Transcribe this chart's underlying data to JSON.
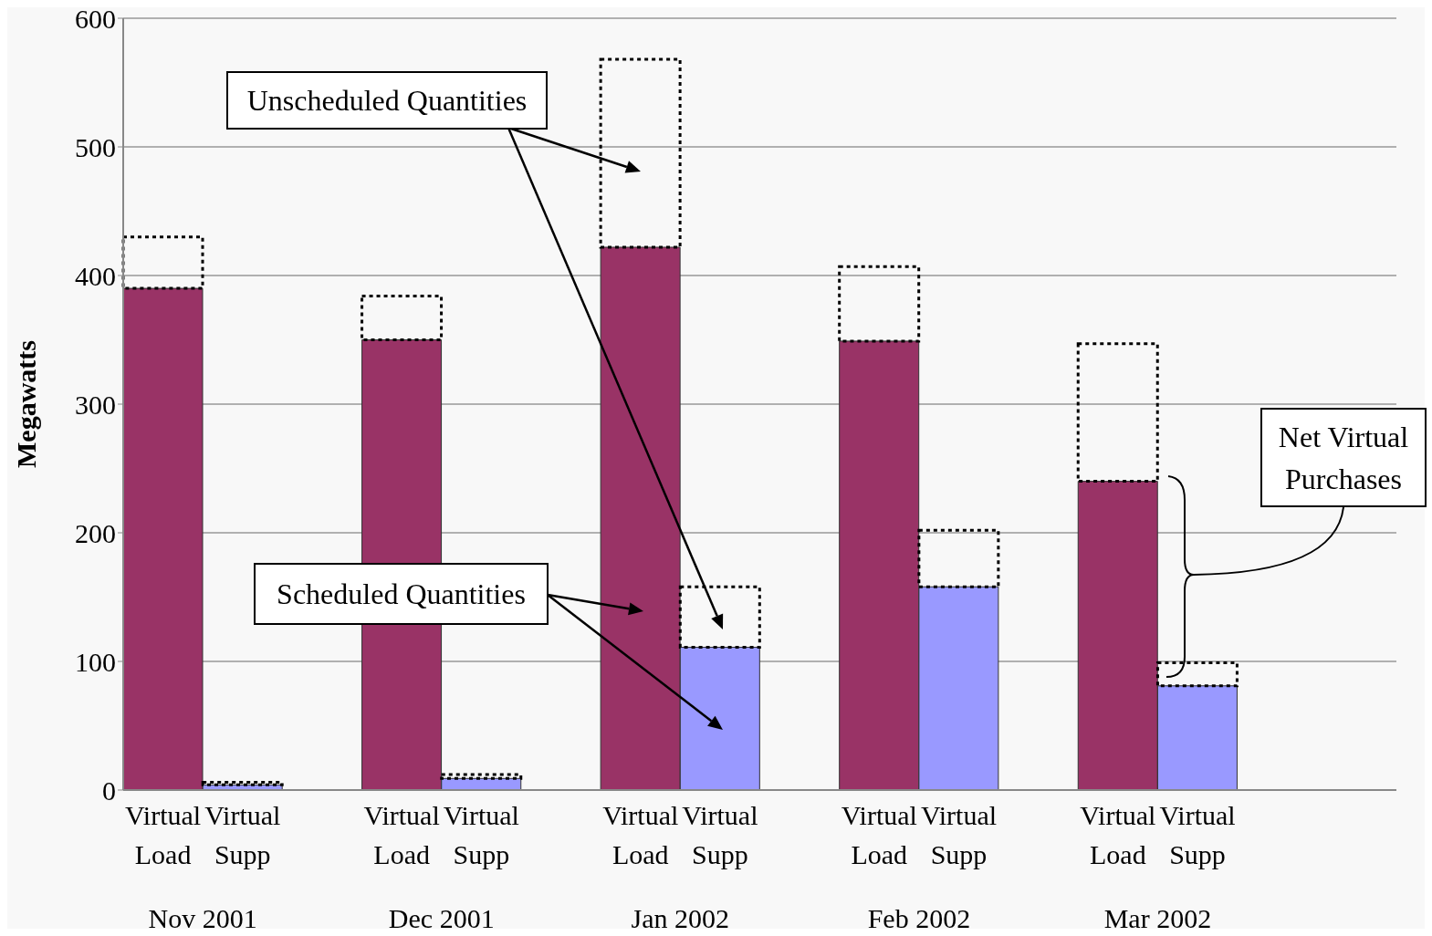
{
  "chart_data": {
    "type": "bar",
    "stacked": true,
    "ylabel": "Megawatts",
    "ylim": [
      0,
      600
    ],
    "yticks": [
      0,
      100,
      200,
      300,
      400,
      500,
      600
    ],
    "grid": "y",
    "categories": [
      "Virtual Load",
      "Virtual Supp",
      null,
      "Virtual Load",
      "Virtual Supp",
      null,
      "Virtual Load",
      "Virtual Supp",
      null,
      "Virtual Load",
      "Virtual Supp",
      null,
      "Virtual Load",
      "Virtual Supp",
      null,
      null
    ],
    "series": [
      {
        "color": "#993366",
        "colors": [
          "#993366",
          "#9999ff",
          null,
          "#993366",
          "#9999ff",
          null,
          "#993366",
          "#9999ff",
          null,
          "#993366",
          "#9999ff",
          null,
          "#993366",
          "#9999ff",
          null,
          null
        ],
        "values": [
          390,
          4,
          null,
          350,
          9,
          null,
          422,
          111,
          null,
          349,
          158,
          null,
          240,
          81,
          null,
          null
        ]
      },
      {
        "color": "#000000",
        "line_style": "dotted",
        "values": [
          40,
          2,
          null,
          34,
          3,
          null,
          146,
          47,
          null,
          58,
          44,
          null,
          107,
          18,
          null,
          null
        ]
      }
    ],
    "annotations": [
      "Nov 2001",
      "Dec 2001",
      "Jan 2002",
      "Feb 2002",
      "Mar 2002",
      "Unscheduled Quantities",
      "Scheduled Quantities",
      "Net Virtual Purchases"
    ]
  }
}
